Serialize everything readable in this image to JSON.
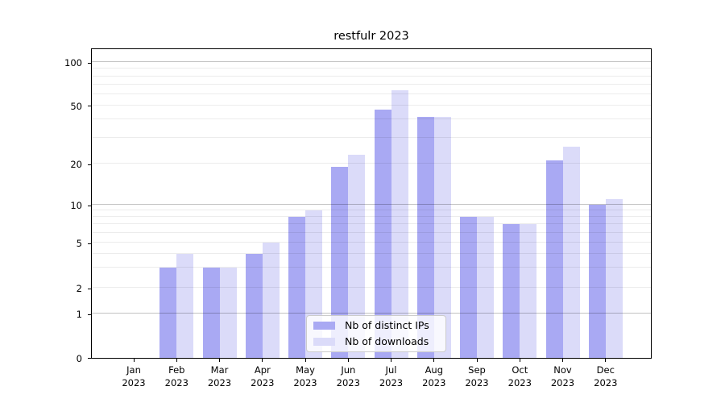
{
  "chart_data": {
    "type": "bar",
    "title": "restfulr 2023",
    "categories": [
      "Jan 2023",
      "Feb 2023",
      "Mar 2023",
      "Apr 2023",
      "May 2023",
      "Jun 2023",
      "Jul 2023",
      "Aug 2023",
      "Sep 2023",
      "Oct 2023",
      "Nov 2023",
      "Dec 2023"
    ],
    "x_tick_months": [
      "Jan",
      "Feb",
      "Mar",
      "Apr",
      "May",
      "Jun",
      "Jul",
      "Aug",
      "Sep",
      "Oct",
      "Nov",
      "Dec"
    ],
    "x_tick_year": "2023",
    "series": [
      {
        "name": "Nb of distinct IPs",
        "color": "#a9a9f3",
        "values": [
          0,
          3,
          3,
          4,
          8,
          19,
          47,
          42,
          8,
          7,
          21,
          10
        ]
      },
      {
        "name": "Nb of downloads",
        "color": "#dbdbf9",
        "values": [
          0,
          4,
          3,
          5,
          9,
          23,
          64,
          42,
          8,
          7,
          26,
          11
        ]
      }
    ],
    "yscale": "log-like",
    "y_ticks": [
      0,
      1,
      2,
      5,
      10,
      20,
      50,
      100
    ],
    "y_tick_labels": [
      "0",
      "1",
      "2",
      "5",
      "10",
      "20",
      "50",
      "100"
    ],
    "ylim": [
      0,
      130
    ],
    "grid": "horizontal major+minor, drawn over bars",
    "legend_position": "lower center",
    "colors": {
      "major_grid": "#c2c2c2",
      "minor_grid": "#ececec",
      "axis": "#000000",
      "background": "#ffffff"
    }
  }
}
